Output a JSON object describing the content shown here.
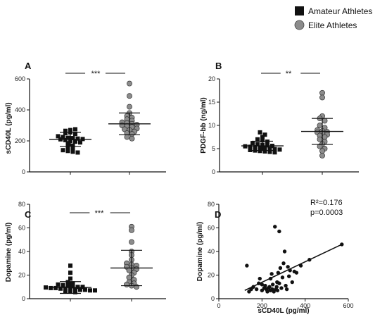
{
  "legend": [
    {
      "label": "Amateur Athletes",
      "marker": "square",
      "color": "#111111"
    },
    {
      "label": "Elite Athletes",
      "marker": "circle",
      "color": "#8c8c8c"
    }
  ],
  "chart_data": [
    {
      "panel": "A",
      "type": "scatter",
      "ylabel": "sCD40L (pg/ml)",
      "ylim": [
        0,
        600
      ],
      "yticks": [
        0,
        200,
        400,
        600
      ],
      "significance": "***",
      "series": [
        {
          "name": "Amateur Athletes",
          "mean": 210,
          "sd": 45,
          "values": [
            265,
            270,
            275,
            250,
            255,
            245,
            230,
            225,
            220,
            218,
            215,
            212,
            210,
            205,
            200,
            195,
            190,
            185,
            170,
            160,
            150,
            140,
            135,
            130,
            125
          ]
        },
        {
          "name": "Elite Athletes",
          "mean": 310,
          "sd": 70,
          "values": [
            570,
            490,
            420,
            380,
            360,
            350,
            340,
            330,
            320,
            315,
            310,
            305,
            300,
            295,
            290,
            280,
            275,
            270,
            260,
            250,
            245,
            225,
            215
          ]
        }
      ]
    },
    {
      "panel": "B",
      "type": "scatter",
      "ylabel": "PDGF-bb (ng/ml)",
      "ylim": [
        0,
        20
      ],
      "yticks": [
        0,
        5,
        10,
        15,
        20
      ],
      "significance": "**",
      "series": [
        {
          "name": "Amateur Athletes",
          "mean": 5.6,
          "sd": 1.0,
          "values": [
            8.5,
            8,
            7.5,
            7,
            6.8,
            6.5,
            6.2,
            6,
            5.8,
            5.7,
            5.6,
            5.5,
            5.4,
            5.3,
            5.2,
            5.1,
            5,
            4.9,
            4.8,
            4.7,
            4.6,
            4.5,
            4.4,
            4.3,
            4.2
          ]
        },
        {
          "name": "Elite Athletes",
          "mean": 8.7,
          "sd": 2.8,
          "values": [
            17,
            16,
            12,
            11.5,
            11,
            10,
            9.5,
            9,
            8.8,
            8.6,
            8.5,
            8.3,
            8,
            7.8,
            7.5,
            7,
            6.5,
            6,
            5.5,
            5,
            4.5,
            3.5
          ]
        }
      ]
    },
    {
      "panel": "C",
      "type": "scatter",
      "ylabel": "Dopamine (pg/ml)",
      "ylim": [
        0,
        80
      ],
      "yticks": [
        0,
        20,
        40,
        60,
        80
      ],
      "significance": "***",
      "series": [
        {
          "name": "Amateur Athletes",
          "mean": 9.5,
          "sd": 5,
          "values": [
            28,
            22,
            17,
            14,
            13,
            12,
            11.5,
            11,
            10.5,
            10,
            10,
            9.5,
            9,
            9,
            8.5,
            8.5,
            8,
            8,
            7.5,
            7.5,
            7,
            7,
            6.5,
            6,
            5.5
          ]
        },
        {
          "name": "Elite Athletes",
          "mean": 26,
          "sd": 15,
          "values": [
            61,
            58,
            48,
            40,
            37,
            33,
            30,
            29,
            28,
            27,
            26,
            25,
            24,
            22,
            20,
            18,
            16,
            14,
            13,
            12,
            11,
            10
          ]
        }
      ]
    },
    {
      "panel": "D",
      "type": "scatter",
      "xlabel": "sCD40L (pg/ml)",
      "ylabel": "Dopamine (pg/ml)",
      "xlim": [
        0,
        600
      ],
      "xticks": [
        0,
        200,
        400,
        600
      ],
      "ylim": [
        0,
        80
      ],
      "yticks": [
        0,
        20,
        40,
        60,
        80
      ],
      "annotation": {
        "r2": "R²=0.176",
        "p": "p=0.0003"
      },
      "regression": {
        "x": [
          120,
          570
        ],
        "y": [
          7,
          46
        ]
      },
      "points": [
        [
          130,
          28
        ],
        [
          150,
          8
        ],
        [
          160,
          10
        ],
        [
          175,
          8
        ],
        [
          185,
          13
        ],
        [
          190,
          17
        ],
        [
          200,
          7
        ],
        [
          210,
          9
        ],
        [
          215,
          11
        ],
        [
          220,
          8
        ],
        [
          225,
          6
        ],
        [
          230,
          9
        ],
        [
          235,
          10
        ],
        [
          240,
          7
        ],
        [
          245,
          21
        ],
        [
          248,
          8
        ],
        [
          250,
          12
        ],
        [
          255,
          6
        ],
        [
          260,
          61
        ],
        [
          265,
          8
        ],
        [
          268,
          10
        ],
        [
          270,
          14
        ],
        [
          272,
          7
        ],
        [
          275,
          22
        ],
        [
          280,
          57
        ],
        [
          285,
          26
        ],
        [
          290,
          9
        ],
        [
          295,
          18
        ],
        [
          300,
          30
        ],
        [
          305,
          40
        ],
        [
          310,
          11
        ],
        [
          315,
          8
        ],
        [
          320,
          27
        ],
        [
          325,
          19
        ],
        [
          330,
          24
        ],
        [
          340,
          14
        ],
        [
          350,
          23
        ],
        [
          360,
          22
        ],
        [
          380,
          28
        ],
        [
          420,
          33
        ],
        [
          570,
          46
        ],
        [
          140,
          6
        ],
        [
          200,
          12
        ],
        [
          280,
          13
        ],
        [
          240,
          17
        ]
      ]
    }
  ]
}
